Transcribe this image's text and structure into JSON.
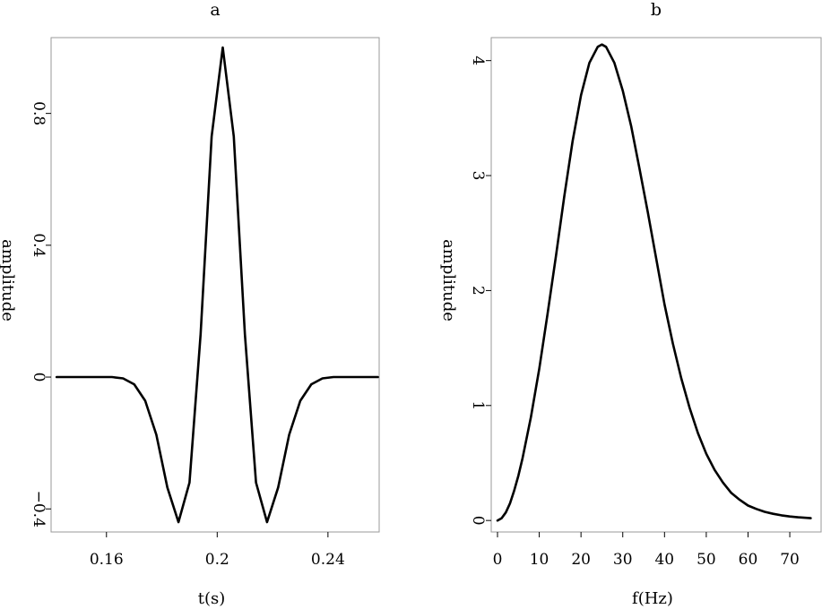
{
  "chart_data": [
    {
      "type": "line",
      "title": "a",
      "xlabel": "t(s)",
      "ylabel": "amplitude",
      "xlim": [
        0.14,
        0.2585
      ],
      "ylim": [
        -0.47,
        1.03
      ],
      "xticks": [
        0.16,
        0.2,
        0.24
      ],
      "xtick_labels": [
        "0.16",
        "0.2",
        "0.24"
      ],
      "yticks": [
        -0.4,
        0,
        0.4,
        0.8
      ],
      "ytick_labels": [
        "−0.4",
        "0",
        "0.4",
        "0.8"
      ],
      "grid": false,
      "series": [
        {
          "x": [
            0.142,
            0.146,
            0.15,
            0.154,
            0.158,
            0.162,
            0.166,
            0.17,
            0.174,
            0.178,
            0.182,
            0.186,
            0.19,
            0.194,
            0.198,
            0.202,
            0.206,
            0.21,
            0.214,
            0.218,
            0.222,
            0.226,
            0.23,
            0.234,
            0.238,
            0.242,
            0.246,
            0.25,
            0.254,
            0.258
          ],
          "y": [
            0,
            0,
            0,
            0,
            0,
            0,
            -0.004,
            -0.022,
            -0.072,
            -0.175,
            -0.335,
            -0.44,
            -0.32,
            0.13,
            0.73,
            1.0,
            0.73,
            0.13,
            -0.32,
            -0.44,
            -0.335,
            -0.175,
            -0.072,
            -0.022,
            -0.004,
            0,
            0,
            0,
            0,
            0
          ]
        }
      ]
    },
    {
      "type": "line",
      "title": "b",
      "xlabel": "f(Hz)",
      "ylabel": "amplitude",
      "xlim": [
        -1.5,
        77.5
      ],
      "ylim": [
        -0.1,
        4.2
      ],
      "xticks": [
        0,
        10,
        20,
        30,
        40,
        50,
        60,
        70
      ],
      "xtick_labels": [
        "0",
        "10",
        "20",
        "30",
        "40",
        "50",
        "60",
        "70"
      ],
      "yticks": [
        0,
        1,
        2,
        3,
        4
      ],
      "ytick_labels": [
        "0",
        "1",
        "2",
        "3",
        "4"
      ],
      "grid": false,
      "series": [
        {
          "x": [
            0,
            1,
            2,
            3,
            4,
            5,
            6,
            8,
            10,
            12,
            14,
            16,
            18,
            20,
            22,
            24,
            25,
            26,
            28,
            30,
            32,
            34,
            36,
            38,
            40,
            42,
            44,
            46,
            48,
            50,
            52,
            54,
            56,
            58,
            60,
            62,
            64,
            66,
            68,
            70,
            72,
            75
          ],
          "y": [
            0,
            0.02,
            0.07,
            0.15,
            0.26,
            0.39,
            0.54,
            0.9,
            1.32,
            1.8,
            2.3,
            2.82,
            3.3,
            3.7,
            3.98,
            4.12,
            4.14,
            4.12,
            3.98,
            3.74,
            3.43,
            3.06,
            2.68,
            2.28,
            1.88,
            1.54,
            1.24,
            0.98,
            0.76,
            0.58,
            0.44,
            0.33,
            0.24,
            0.18,
            0.13,
            0.1,
            0.075,
            0.058,
            0.045,
            0.035,
            0.028,
            0.02
          ]
        }
      ]
    }
  ]
}
